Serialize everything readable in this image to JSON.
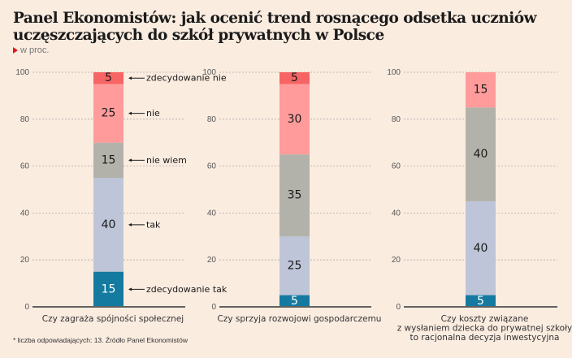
{
  "header": {
    "title": "Panel Ekonomistów: jak ocenić trend rosnącego odsetka uczniów uczęszczających do szkół prywatnych w Polsce",
    "subtitle": "w proc.",
    "subtitle_icon": "red-triangle-icon"
  },
  "footnote": "* liczba odpowiadających: 13. Źródło Panel Ekonomistów",
  "colors": {
    "zdecydowanie_tak": "#157aa0",
    "tak": "#bec5d8",
    "nie_wiem": "#b3b2aa",
    "nie": "#ff9b9b",
    "zdecydowanie_nie": "#f76464",
    "background": "#fbece0",
    "gridline": "#aaaaaa",
    "axis": "#333333"
  },
  "chart_data": {
    "type": "bar",
    "stacked": true,
    "title": "Panel Ekonomistów: jak ocenić trend rosnącego odsetka uczniów uczęszczających do szkół prywatnych w Polsce",
    "subtitle": "w proc.",
    "ylim": [
      0,
      100
    ],
    "yticks": [
      0,
      20,
      40,
      60,
      80,
      100
    ],
    "grid": true,
    "legend_placement": "inline-right-of-first-bar",
    "series_order": [
      "zdecydowanie tak",
      "tak",
      "nie wiem",
      "nie",
      "zdecydowanie nie"
    ],
    "series_keys": [
      "zdecydowanie_tak",
      "tak",
      "nie_wiem",
      "nie",
      "zdecydowanie_nie"
    ],
    "categories": [
      [
        "Czy zagraża spójności społecznej"
      ],
      [
        "Czy sprzyja rozwojowi gospodarczemu"
      ],
      [
        "Czy koszty związane",
        "z wysłaniem dziecka do prywatnej szkoły",
        "to racjonalna decyzja inwestycyjna"
      ]
    ],
    "series": [
      {
        "name": "zdecydowanie tak",
        "key": "zdecydowanie_tak",
        "values": [
          15,
          5,
          5
        ]
      },
      {
        "name": "tak",
        "key": "tak",
        "values": [
          40,
          25,
          40
        ]
      },
      {
        "name": "nie wiem",
        "key": "nie_wiem",
        "values": [
          15,
          35,
          40
        ]
      },
      {
        "name": "nie",
        "key": "nie",
        "values": [
          25,
          30,
          15
        ]
      },
      {
        "name": "zdecydowanie nie",
        "key": "zdecydowanie_nie",
        "values": [
          5,
          5,
          0
        ]
      }
    ]
  }
}
